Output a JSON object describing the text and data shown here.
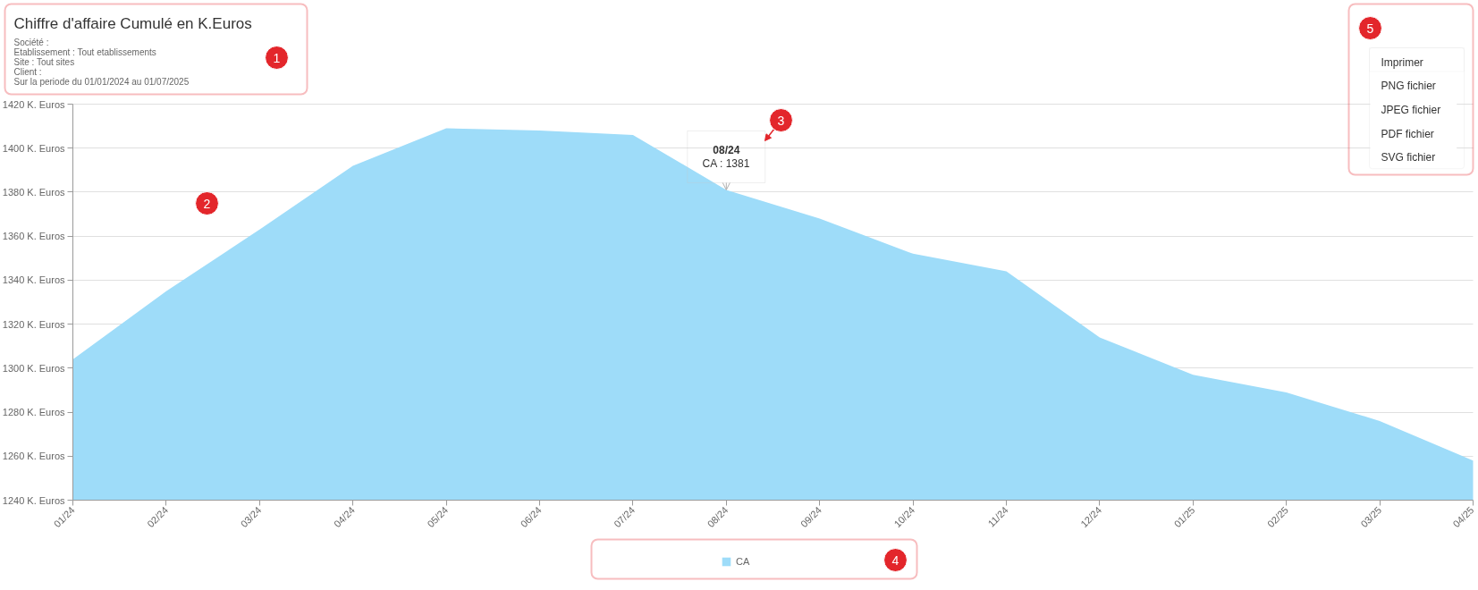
{
  "chart_data": {
    "type": "area",
    "title": "Chiffre d'affaire Cumulé en K.Euros",
    "subtitle": "Société :\nEtablissement : Tout etablissements\nSite : Tout sites\nClient :\nSur la periode du 01/01/2024 au 01/07/2025",
    "categories": [
      "01/24",
      "02/24",
      "03/24",
      "04/24",
      "05/24",
      "06/24",
      "07/24",
      "08/24",
      "09/24",
      "10/24",
      "11/24",
      "12/24",
      "01/25",
      "02/25",
      "03/25",
      "04/25"
    ],
    "series": [
      {
        "name": "CA",
        "color": "#9edcf9",
        "values": [
          1304,
          1335,
          1363,
          1392,
          1409,
          1408,
          1406,
          1381,
          1368,
          1352,
          1344,
          1314,
          1297,
          1289,
          1276,
          1258
        ]
      }
    ],
    "ylim": [
      1240,
      1420
    ],
    "yticks": [
      {
        "value": 1240,
        "label": "1240 K. Euros"
      },
      {
        "value": 1260,
        "label": "1260 K. Euros"
      },
      {
        "value": 1280,
        "label": "1280 K. Euros"
      },
      {
        "value": 1300,
        "label": "1300 K. Euros"
      },
      {
        "value": 1320,
        "label": "1320 K. Euros"
      },
      {
        "value": 1340,
        "label": "1340 K. Euros"
      },
      {
        "value": 1360,
        "label": "1360 K. Euros"
      },
      {
        "value": 1380,
        "label": "1380 K. Euros"
      },
      {
        "value": 1400,
        "label": "1400 K. Euros"
      },
      {
        "value": 1420,
        "label": "1420 K. Euros"
      }
    ],
    "grid": "y",
    "legend": "bottom",
    "annotations": [
      {
        "text": "CA : 1381",
        "x": "08/24",
        "y": 1381
      },
      "08/24",
      "1",
      "2",
      "3",
      "4",
      "5",
      "Imprimer",
      "PNG fichier",
      "JPEG fichier",
      "PDF fichier",
      "SVG fichier"
    ]
  }
}
